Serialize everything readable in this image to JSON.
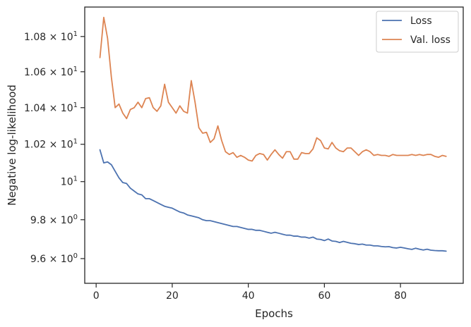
{
  "chart_data": {
    "type": "line",
    "xlabel": "Epochs",
    "ylabel": "Negative log-likelihood",
    "xlim": [
      -3,
      96.5
    ],
    "ylim": [
      9.475,
      10.97
    ],
    "y_scale": "log",
    "x_ticks": [
      0,
      20,
      40,
      60,
      80
    ],
    "x_tick_labels": [
      "0",
      "20",
      "40",
      "60",
      "80"
    ],
    "y_ticks": [
      9.6,
      9.8,
      10.0,
      10.2,
      10.4,
      10.6,
      10.8
    ],
    "y_tick_labels": [
      {
        "mant": "9.6",
        "base": "10",
        "exp": "0"
      },
      {
        "mant": "9.8",
        "base": "10",
        "exp": "0"
      },
      {
        "mant": "",
        "base": "10",
        "exp": "1"
      },
      {
        "mant": "1.02",
        "base": "10",
        "exp": "1"
      },
      {
        "mant": "1.04",
        "base": "10",
        "exp": "1"
      },
      {
        "mant": "1.06",
        "base": "10",
        "exp": "1"
      },
      {
        "mant": "1.08",
        "base": "10",
        "exp": "1"
      }
    ],
    "grid": false,
    "legend_position": "top-right",
    "series": [
      {
        "name": "Loss",
        "color": "#4c72b0",
        "x": [
          1,
          2,
          3,
          4,
          5,
          6,
          7,
          8,
          9,
          10,
          11,
          12,
          13,
          14,
          15,
          16,
          17,
          18,
          19,
          20,
          21,
          22,
          23,
          24,
          25,
          26,
          27,
          28,
          29,
          30,
          31,
          32,
          33,
          34,
          35,
          36,
          37,
          38,
          39,
          40,
          41,
          42,
          43,
          44,
          45,
          46,
          47,
          48,
          49,
          50,
          51,
          52,
          53,
          54,
          55,
          56,
          57,
          58,
          59,
          60,
          61,
          62,
          63,
          64,
          65,
          66,
          67,
          68,
          69,
          70,
          71,
          72,
          73,
          74,
          75,
          76,
          77,
          78,
          79,
          80,
          81,
          82,
          83,
          84,
          85,
          86,
          87,
          88,
          89,
          90,
          91,
          92
        ],
        "values": [
          10.17,
          10.1,
          10.105,
          10.09,
          10.055,
          10.02,
          9.995,
          9.99,
          9.965,
          9.95,
          9.935,
          9.93,
          9.91,
          9.91,
          9.9,
          9.89,
          9.88,
          9.87,
          9.865,
          9.86,
          9.85,
          9.84,
          9.835,
          9.825,
          9.82,
          9.815,
          9.81,
          9.8,
          9.795,
          9.795,
          9.79,
          9.785,
          9.78,
          9.775,
          9.77,
          9.765,
          9.765,
          9.76,
          9.755,
          9.75,
          9.75,
          9.745,
          9.745,
          9.74,
          9.735,
          9.73,
          9.735,
          9.73,
          9.725,
          9.72,
          9.72,
          9.715,
          9.715,
          9.71,
          9.71,
          9.705,
          9.71,
          9.7,
          9.698,
          9.692,
          9.7,
          9.69,
          9.688,
          9.682,
          9.688,
          9.683,
          9.678,
          9.676,
          9.672,
          9.674,
          9.669,
          9.669,
          9.665,
          9.665,
          9.662,
          9.66,
          9.661,
          9.656,
          9.654,
          9.658,
          9.654,
          9.65,
          9.647,
          9.653,
          9.648,
          9.644,
          9.648,
          9.643,
          9.641,
          9.64,
          9.64,
          9.638
        ]
      },
      {
        "name": "Val. loss",
        "color": "#dd8452",
        "x": [
          1,
          2,
          3,
          4,
          5,
          6,
          7,
          8,
          9,
          10,
          11,
          12,
          13,
          14,
          15,
          16,
          17,
          18,
          19,
          20,
          21,
          22,
          23,
          24,
          25,
          26,
          27,
          28,
          29,
          30,
          31,
          32,
          33,
          34,
          35,
          36,
          37,
          38,
          39,
          40,
          41,
          42,
          43,
          44,
          45,
          46,
          47,
          48,
          49,
          50,
          51,
          52,
          53,
          54,
          55,
          56,
          57,
          58,
          59,
          60,
          61,
          62,
          63,
          64,
          65,
          66,
          67,
          68,
          69,
          70,
          71,
          72,
          73,
          74,
          75,
          76,
          77,
          78,
          79,
          80,
          81,
          82,
          83,
          84,
          85,
          86,
          87,
          88,
          89,
          90,
          91,
          92
        ],
        "values": [
          10.68,
          10.91,
          10.79,
          10.57,
          10.4,
          10.42,
          10.37,
          10.34,
          10.39,
          10.4,
          10.43,
          10.4,
          10.45,
          10.455,
          10.4,
          10.38,
          10.41,
          10.53,
          10.43,
          10.4,
          10.37,
          10.41,
          10.38,
          10.37,
          10.55,
          10.43,
          10.29,
          10.26,
          10.265,
          10.21,
          10.23,
          10.3,
          10.22,
          10.16,
          10.145,
          10.155,
          10.13,
          10.14,
          10.13,
          10.115,
          10.11,
          10.14,
          10.15,
          10.145,
          10.115,
          10.145,
          10.17,
          10.145,
          10.125,
          10.16,
          10.16,
          10.12,
          10.12,
          10.155,
          10.15,
          10.15,
          10.175,
          10.235,
          10.22,
          10.18,
          10.175,
          10.21,
          10.18,
          10.165,
          10.16,
          10.18,
          10.18,
          10.16,
          10.14,
          10.16,
          10.17,
          10.16,
          10.14,
          10.145,
          10.14,
          10.14,
          10.135,
          10.145,
          10.14,
          10.14,
          10.14,
          10.14,
          10.145,
          10.14,
          10.145,
          10.14,
          10.145,
          10.145,
          10.135,
          10.13,
          10.14,
          10.135
        ]
      }
    ]
  }
}
